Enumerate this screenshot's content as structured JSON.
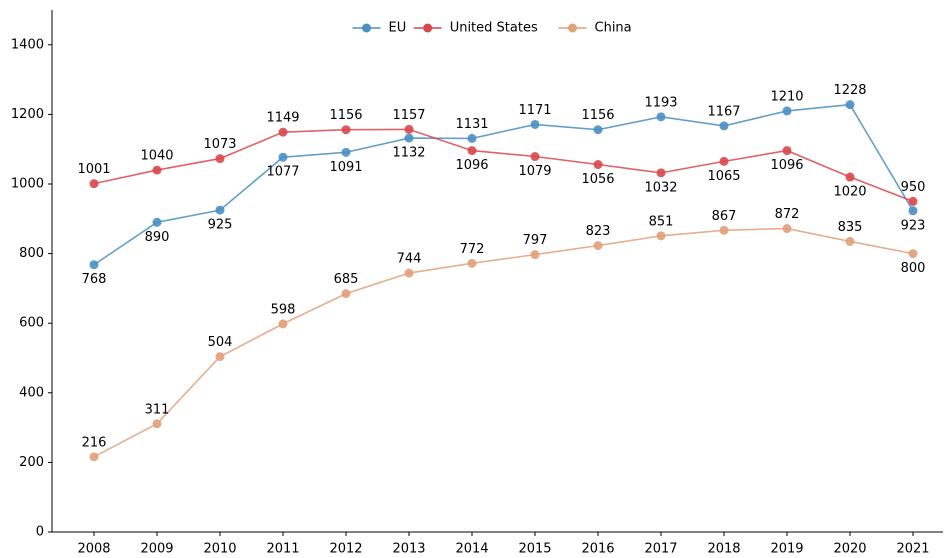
{
  "chart_data": {
    "type": "line",
    "categories": [
      "2008",
      "2009",
      "2010",
      "2011",
      "2012",
      "2013",
      "2014",
      "2015",
      "2016",
      "2017",
      "2018",
      "2019",
      "2020",
      "2021"
    ],
    "series": [
      {
        "name": "EU",
        "color": "#4a8fc2",
        "values": [
          768,
          890,
          925,
          1077,
          1091,
          1132,
          1131,
          1171,
          1156,
          1193,
          1167,
          1210,
          1228,
          923
        ]
      },
      {
        "name": "United States",
        "color": "#d9474c",
        "values": [
          1001,
          1040,
          1073,
          1149,
          1156,
          1157,
          1096,
          1079,
          1056,
          1032,
          1065,
          1096,
          1020,
          950
        ]
      },
      {
        "name": "China",
        "color": "#e0a07a",
        "values": [
          216,
          311,
          504,
          598,
          685,
          744,
          772,
          797,
          823,
          851,
          867,
          872,
          835,
          800
        ]
      }
    ],
    "ylim": [
      0,
      1500
    ],
    "yticks": [
      0,
      200,
      400,
      600,
      800,
      1000,
      1200,
      1400
    ],
    "legend": "upper center",
    "grid": false
  }
}
